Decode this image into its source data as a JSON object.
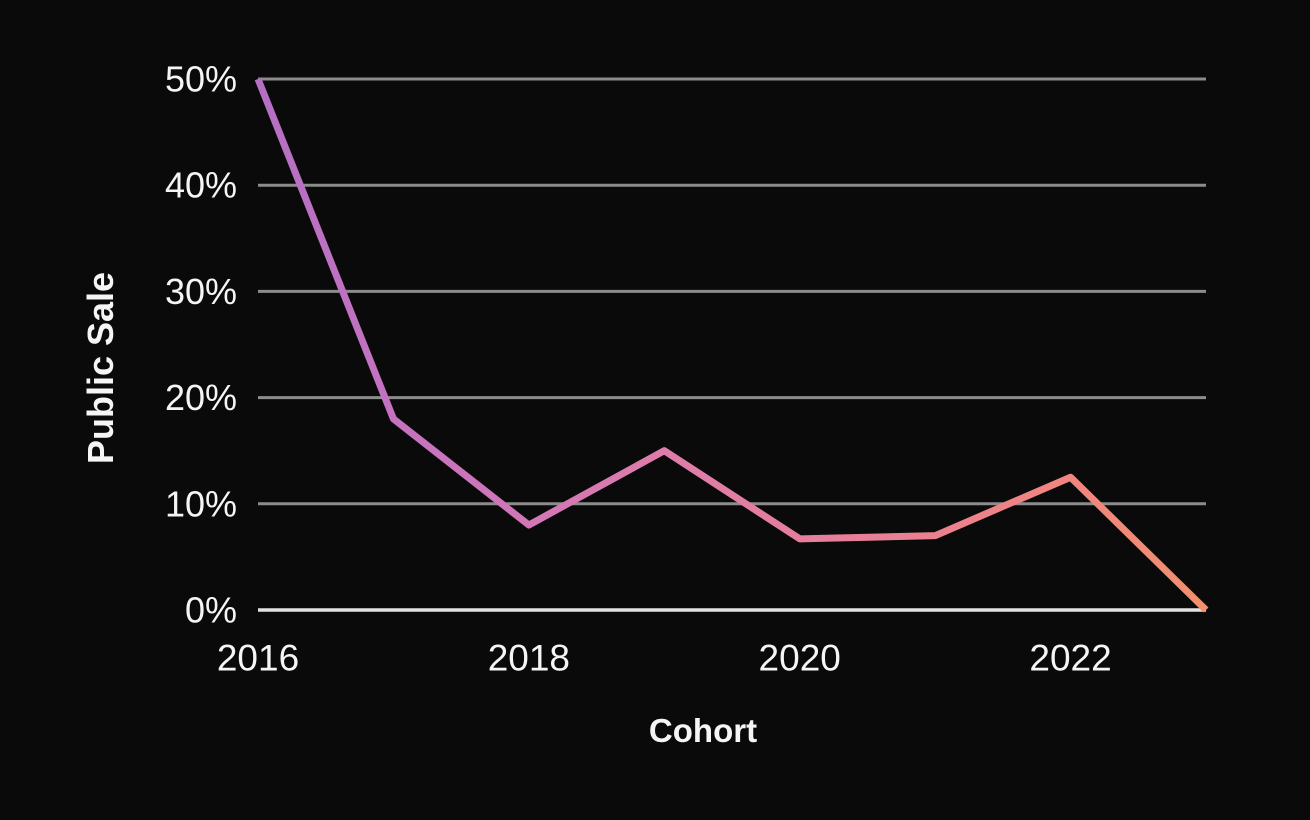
{
  "chart_data": {
    "type": "line",
    "title": "",
    "xlabel": "Cohort",
    "ylabel": "Public Sale",
    "x": [
      2016,
      2017,
      2018,
      2019,
      2020,
      2021,
      2022,
      2023
    ],
    "values": [
      50,
      18,
      8,
      15,
      6.7,
      7,
      12.5,
      0
    ],
    "series": [
      {
        "name": "Public Sale",
        "values": [
          50,
          18,
          8,
          15,
          6.7,
          7,
          12.5,
          0
        ]
      }
    ],
    "xlim": [
      2016,
      2023
    ],
    "ylim": [
      0,
      50
    ],
    "yticks": [
      {
        "value": 0,
        "label": "0%"
      },
      {
        "value": 10,
        "label": "10%"
      },
      {
        "value": 20,
        "label": "20%"
      },
      {
        "value": 30,
        "label": "30%"
      },
      {
        "value": 40,
        "label": "40%"
      },
      {
        "value": 50,
        "label": "50%"
      }
    ],
    "xticks": [
      {
        "value": 2016,
        "label": "2016"
      },
      {
        "value": 2018,
        "label": "2018"
      },
      {
        "value": 2020,
        "label": "2020"
      },
      {
        "value": 2022,
        "label": "2022"
      }
    ],
    "grid": "horizontal-only",
    "legend_position": "none",
    "colors": {
      "background": "#0a0a0a",
      "text": "#f5f5f5",
      "gridline": "#8c8c8c",
      "baseline": "#e3e3e3",
      "line_gradient_stops": [
        {
          "offset": 0,
          "color": "#b56fc4"
        },
        {
          "offset": 0.2,
          "color": "#ca74bd"
        },
        {
          "offset": 0.45,
          "color": "#e07da9"
        },
        {
          "offset": 0.65,
          "color": "#e87f96"
        },
        {
          "offset": 0.85,
          "color": "#f08580"
        },
        {
          "offset": 1,
          "color": "#f1906c"
        }
      ]
    }
  }
}
